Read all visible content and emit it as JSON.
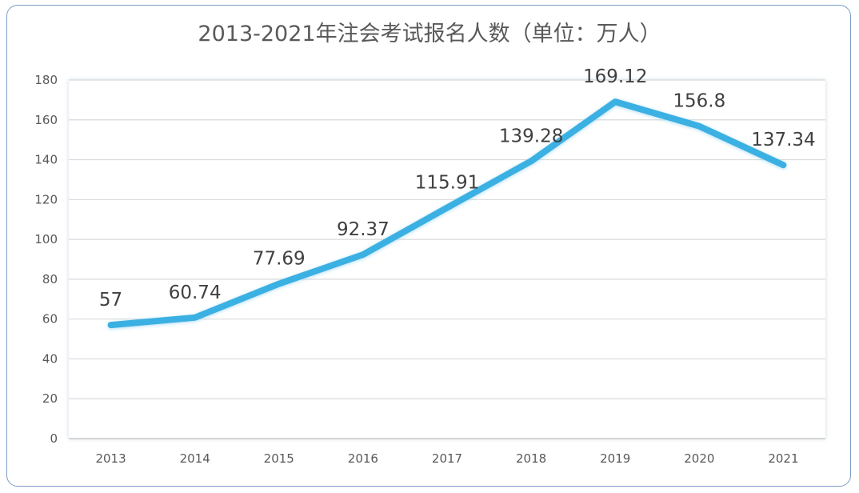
{
  "chart_data": {
    "type": "line",
    "title": "2013-2021年注会考试报名人数（单位：万人）",
    "categories": [
      "2013",
      "2014",
      "2015",
      "2016",
      "2017",
      "2018",
      "2019",
      "2020",
      "2021"
    ],
    "series": [
      {
        "values": [
          57,
          60.74,
          77.69,
          92.37,
          115.91,
          139.28,
          169.12,
          156.8,
          137.34
        ],
        "labels": [
          "57",
          "60.74",
          "77.69",
          "92.37",
          "115.91",
          "139.28",
          "169.12",
          "156.8",
          "137.34"
        ],
        "color": "#3ab0e2"
      }
    ],
    "ylim": [
      0,
      180
    ],
    "yticks": [
      "0",
      "20",
      "40",
      "60",
      "80",
      "100",
      "120",
      "140",
      "160",
      "180"
    ],
    "grid": true,
    "legend": "none"
  }
}
